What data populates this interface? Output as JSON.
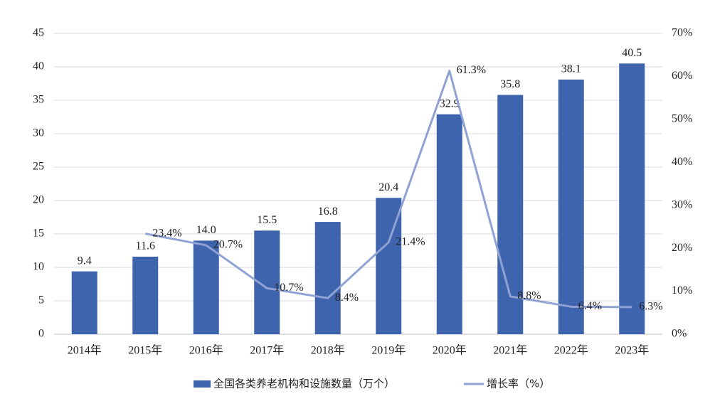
{
  "chart_data": {
    "type": "bar_line",
    "categories": [
      "2014年",
      "2015年",
      "2016年",
      "2017年",
      "2018年",
      "2019年",
      "2020年",
      "2021年",
      "2022年",
      "2023年"
    ],
    "series": [
      {
        "name": "全国各类养老机构和设施数量（万个）",
        "type": "bar",
        "color": "#3f64ae",
        "values": [
          9.4,
          11.6,
          14.0,
          15.5,
          16.8,
          20.4,
          32.9,
          35.8,
          38.1,
          40.5
        ],
        "value_labels": [
          "9.4",
          "11.6",
          "14.0",
          "15.5",
          "16.8",
          "20.4",
          "32.9",
          "35.8",
          "38.1",
          "40.5"
        ]
      },
      {
        "name": "增长率（%）",
        "type": "line",
        "axis": "y2",
        "color": "#8fa2d3",
        "values": [
          null,
          23.4,
          20.7,
          10.7,
          8.4,
          21.4,
          61.3,
          8.8,
          6.4,
          6.3
        ],
        "value_labels": [
          null,
          "23.4%",
          "20.7%",
          "10.7%",
          "8.4%",
          "21.4%",
          "61.3%",
          "8.8%",
          "6.4%",
          "6.3%"
        ]
      }
    ],
    "ylim": [
      0,
      45
    ],
    "yticks": [
      0,
      5,
      10,
      15,
      20,
      25,
      30,
      35,
      40,
      45
    ],
    "y2lim": [
      0,
      70
    ],
    "y2ticks": [
      {
        "value": 0,
        "label": "0%"
      },
      {
        "value": 10,
        "label": "10%"
      },
      {
        "value": 20,
        "label": "20%"
      },
      {
        "value": 30,
        "label": "30%"
      },
      {
        "value": 40,
        "label": "40%"
      },
      {
        "value": 50,
        "label": "50%"
      },
      {
        "value": 60,
        "label": "60%"
      },
      {
        "value": 70,
        "label": "70%"
      }
    ],
    "grid": true,
    "legend": "bottom"
  }
}
